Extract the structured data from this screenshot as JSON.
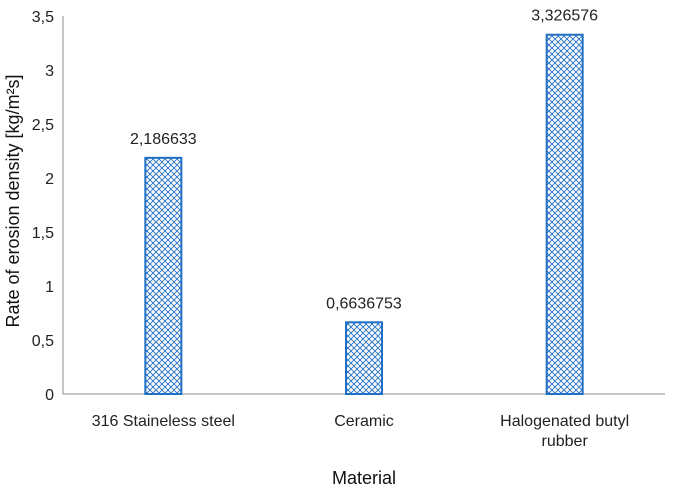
{
  "chart_data": {
    "type": "bar",
    "title": "",
    "xlabel": "Material",
    "ylabel": "Rate of erosion density [kg/m²s]",
    "ylim": [
      0,
      3.5
    ],
    "yticks": [
      "0",
      "0,5",
      "1",
      "1,5",
      "2",
      "2,5",
      "3",
      "3,5"
    ],
    "ytick_values": [
      0,
      0.5,
      1,
      1.5,
      2,
      2.5,
      3,
      3.5
    ],
    "grid": false,
    "legend": "none",
    "categories": [
      [
        "316 Staineless steel"
      ],
      [
        "Ceramic"
      ],
      [
        "Halogenated butyl",
        "rubber"
      ]
    ],
    "values": [
      2.186633,
      0.6636753,
      3.326576
    ],
    "value_labels": [
      "2,186633",
      "0,6636753",
      "3,326576"
    ],
    "bar_color": "#1f6fc4",
    "bar_fill": "crosshatch"
  }
}
